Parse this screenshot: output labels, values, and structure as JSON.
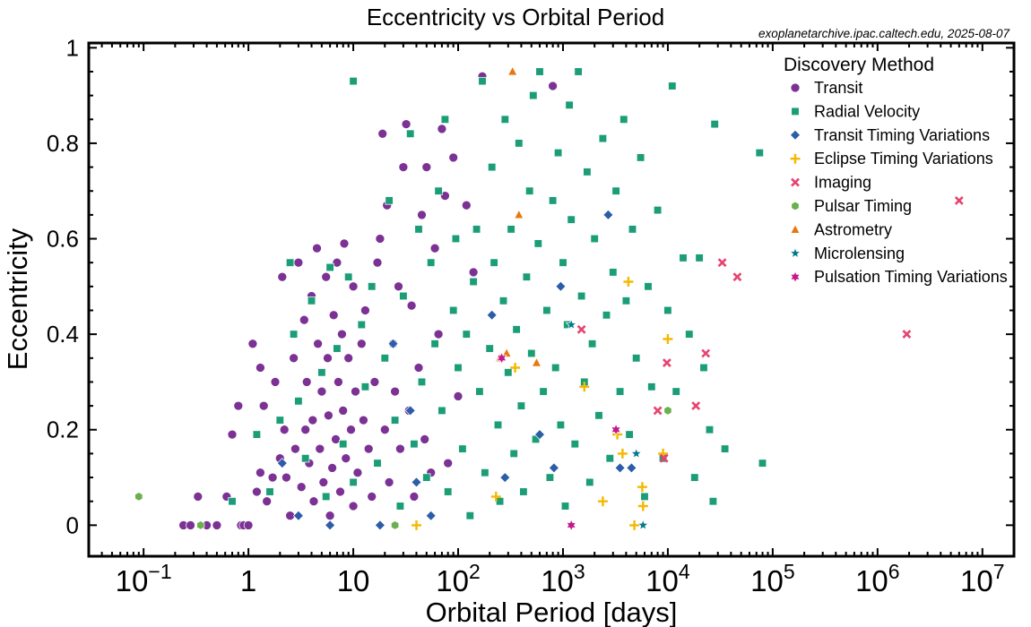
{
  "chart_data": {
    "type": "scatter",
    "title": "Eccentricity vs Orbital Period",
    "source_note": "exoplanetarchive.ipac.caltech.edu, 2025-08-07",
    "xlabel": "Orbital Period [days]",
    "ylabel": "Eccentricity",
    "x_scale": "log",
    "xlim": [
      0.03,
      20000000
    ],
    "ylim": [
      -0.065,
      1.01
    ],
    "x_ticks": [
      {
        "value": 0.1,
        "label": "10",
        "sup": "−1"
      },
      {
        "value": 1,
        "label": "1",
        "sup": ""
      },
      {
        "value": 10,
        "label": "10",
        "sup": ""
      },
      {
        "value": 100,
        "label": "10",
        "sup": "2"
      },
      {
        "value": 1000,
        "label": "10",
        "sup": "3"
      },
      {
        "value": 10000,
        "label": "10",
        "sup": "4"
      },
      {
        "value": 100000,
        "label": "10",
        "sup": "5"
      },
      {
        "value": 1000000,
        "label": "10",
        "sup": "6"
      },
      {
        "value": 10000000,
        "label": "10",
        "sup": "7"
      }
    ],
    "y_ticks": [
      {
        "value": 0,
        "label": "0"
      },
      {
        "value": 0.2,
        "label": "0.2"
      },
      {
        "value": 0.4,
        "label": "0.4"
      },
      {
        "value": 0.6,
        "label": "0.6"
      },
      {
        "value": 0.8,
        "label": "0.8"
      },
      {
        "value": 1,
        "label": "1"
      }
    ],
    "legend": {
      "title": "Discovery Method",
      "placement": "top-right"
    },
    "series": [
      {
        "name": "Transit",
        "color": "#7b3294",
        "marker": "circle",
        "points": [
          [
            0.24,
            0
          ],
          [
            0.28,
            0
          ],
          [
            0.33,
            0.06
          ],
          [
            0.4,
            0
          ],
          [
            0.5,
            0
          ],
          [
            0.62,
            0.06
          ],
          [
            0.7,
            0.19
          ],
          [
            0.8,
            0.25
          ],
          [
            0.85,
            0
          ],
          [
            0.9,
            0
          ],
          [
            1,
            0
          ],
          [
            1.1,
            0.38
          ],
          [
            1.2,
            0.07
          ],
          [
            1.3,
            0.33
          ],
          [
            1.3,
            0.11
          ],
          [
            1.4,
            0.25
          ],
          [
            1.5,
            0.05
          ],
          [
            1.7,
            0.1
          ],
          [
            1.8,
            0.3
          ],
          [
            2,
            0.14
          ],
          [
            2.1,
            0.52
          ],
          [
            2.2,
            0.2
          ],
          [
            2.3,
            0.1
          ],
          [
            2.5,
            0.02
          ],
          [
            2.7,
            0.35
          ],
          [
            2.8,
            0.16
          ],
          [
            3,
            0.55
          ],
          [
            3,
            0.26
          ],
          [
            3.2,
            0.08
          ],
          [
            3.4,
            0.43
          ],
          [
            3.5,
            0.2
          ],
          [
            3.6,
            0.3
          ],
          [
            3.8,
            0.13
          ],
          [
            4,
            0.48
          ],
          [
            4.1,
            0.22
          ],
          [
            4.2,
            0.05
          ],
          [
            4.5,
            0.58
          ],
          [
            4.6,
            0.38
          ],
          [
            4.8,
            0.16
          ],
          [
            5,
            0.28
          ],
          [
            5.2,
            0.09
          ],
          [
            5.5,
            0.52
          ],
          [
            5.7,
            0.35
          ],
          [
            5.8,
            0.23
          ],
          [
            6,
            0.02
          ],
          [
            6.3,
            0.12
          ],
          [
            6.5,
            0.44
          ],
          [
            6.8,
            0.18
          ],
          [
            7,
            0.55
          ],
          [
            7.2,
            0.3
          ],
          [
            7.5,
            0.07
          ],
          [
            7.8,
            0.4
          ],
          [
            8,
            0.24
          ],
          [
            8.2,
            0.59
          ],
          [
            8.5,
            0.14
          ],
          [
            9,
            0.35
          ],
          [
            9.5,
            0.2
          ],
          [
            10,
            0.04
          ],
          [
            10,
            0.5
          ],
          [
            10.5,
            0.28
          ],
          [
            11,
            0.11
          ],
          [
            12,
            0.38
          ],
          [
            12.5,
            0.22
          ],
          [
            13,
            0.45
          ],
          [
            14,
            0.16
          ],
          [
            15,
            0.06
          ],
          [
            16,
            0.3
          ],
          [
            17,
            0.55
          ],
          [
            18,
            0.6
          ],
          [
            19,
            0.82
          ],
          [
            20,
            0.2
          ],
          [
            21,
            0.67
          ],
          [
            22,
            0.09
          ],
          [
            24,
            0.38
          ],
          [
            25,
            0.28
          ],
          [
            27,
            0.5
          ],
          [
            28,
            0.16
          ],
          [
            30,
            0.75
          ],
          [
            32,
            0.84
          ],
          [
            34,
            0.24
          ],
          [
            36,
            0.46
          ],
          [
            38,
            0.06
          ],
          [
            42,
            0.33
          ],
          [
            45,
            0.65
          ],
          [
            48,
            0.18
          ],
          [
            50,
            0.75
          ],
          [
            55,
            0.11
          ],
          [
            60,
            0.58
          ],
          [
            65,
            0.4
          ],
          [
            70,
            0.83
          ],
          [
            75,
            0.69
          ],
          [
            80,
            0.13
          ],
          [
            90,
            0.77
          ],
          [
            100,
            0.27
          ],
          [
            120,
            0.67
          ],
          [
            140,
            0.53
          ],
          [
            170,
            0.94
          ],
          [
            800,
            0.92
          ]
        ]
      },
      {
        "name": "Radial Velocity",
        "color": "#1b9e77",
        "marker": "square",
        "points": [
          [
            0.7,
            0.05
          ],
          [
            1.2,
            0.19
          ],
          [
            1.6,
            0.07
          ],
          [
            2,
            0.22
          ],
          [
            2.5,
            0.55
          ],
          [
            2.7,
            0.4
          ],
          [
            3,
            0.26
          ],
          [
            3.5,
            0.14
          ],
          [
            4,
            0.47
          ],
          [
            5,
            0.32
          ],
          [
            5.5,
            0.06
          ],
          [
            6,
            0.54
          ],
          [
            7,
            0.37
          ],
          [
            8,
            0.17
          ],
          [
            9,
            0.52
          ],
          [
            10,
            0.93
          ],
          [
            10,
            0.09
          ],
          [
            12,
            0.42
          ],
          [
            13,
            0.29
          ],
          [
            15,
            0.5
          ],
          [
            17,
            0.13
          ],
          [
            20,
            0.35
          ],
          [
            22,
            0.68
          ],
          [
            25,
            0.22
          ],
          [
            28,
            0.04
          ],
          [
            30,
            0.48
          ],
          [
            35,
            0.82
          ],
          [
            38,
            0.17
          ],
          [
            42,
            0.62
          ],
          [
            45,
            0.3
          ],
          [
            50,
            0.1
          ],
          [
            55,
            0.55
          ],
          [
            60,
            0.38
          ],
          [
            65,
            0.7
          ],
          [
            70,
            0.24
          ],
          [
            75,
            0.85
          ],
          [
            80,
            0.07
          ],
          [
            90,
            0.45
          ],
          [
            95,
            0.6
          ],
          [
            100,
            0.33
          ],
          [
            110,
            0.16
          ],
          [
            120,
            0.4
          ],
          [
            130,
            0.02
          ],
          [
            140,
            0.51
          ],
          [
            150,
            0.62
          ],
          [
            160,
            0.28
          ],
          [
            170,
            0.93
          ],
          [
            180,
            0.11
          ],
          [
            200,
            0.37
          ],
          [
            210,
            0.75
          ],
          [
            220,
            0.55
          ],
          [
            240,
            0.21
          ],
          [
            250,
            0.05
          ],
          [
            270,
            0.47
          ],
          [
            280,
            0.85
          ],
          [
            300,
            0.32
          ],
          [
            320,
            0.62
          ],
          [
            340,
            0.15
          ],
          [
            360,
            0.41
          ],
          [
            380,
            0.8
          ],
          [
            400,
            0.25
          ],
          [
            420,
            0.07
          ],
          [
            450,
            0.52
          ],
          [
            480,
            0.7
          ],
          [
            500,
            0.36
          ],
          [
            520,
            0.9
          ],
          [
            550,
            0.18
          ],
          [
            580,
            0.59
          ],
          [
            600,
            0.95
          ],
          [
            650,
            0.28
          ],
          [
            700,
            0.45
          ],
          [
            750,
            0.1
          ],
          [
            800,
            0.68
          ],
          [
            850,
            0.33
          ],
          [
            900,
            0.78
          ],
          [
            950,
            0.21
          ],
          [
            1000,
            0.55
          ],
          [
            1050,
            0.04
          ],
          [
            1100,
            0.42
          ],
          [
            1150,
            0.88
          ],
          [
            1200,
            0.64
          ],
          [
            1300,
            0.17
          ],
          [
            1400,
            0.95
          ],
          [
            1500,
            0.48
          ],
          [
            1600,
            0.3
          ],
          [
            1700,
            0.74
          ],
          [
            1800,
            0.09
          ],
          [
            1900,
            0.38
          ],
          [
            2000,
            0.6
          ],
          [
            2200,
            0.23
          ],
          [
            2400,
            0.81
          ],
          [
            2600,
            0.44
          ],
          [
            2800,
            0.14
          ],
          [
            3000,
            0.53
          ],
          [
            3200,
            0.7
          ],
          [
            3500,
            0.28
          ],
          [
            3800,
            0.85
          ],
          [
            4000,
            0.47
          ],
          [
            4300,
            0.19
          ],
          [
            4600,
            0.62
          ],
          [
            5000,
            0.35
          ],
          [
            5500,
            0.77
          ],
          [
            6000,
            0.06
          ],
          [
            6500,
            0.5
          ],
          [
            7000,
            0.29
          ],
          [
            8000,
            0.66
          ],
          [
            9000,
            0.14
          ],
          [
            10000,
            0.45
          ],
          [
            11000,
            0.92
          ],
          [
            12000,
            0.28
          ],
          [
            14000,
            0.56
          ],
          [
            16000,
            0.4
          ],
          [
            18000,
            0.1
          ],
          [
            20000,
            0.56
          ],
          [
            22000,
            0.33
          ],
          [
            25000,
            0.2
          ],
          [
            27000,
            0.05
          ],
          [
            28000,
            0.84
          ],
          [
            35000,
            0.16
          ],
          [
            75000,
            0.78
          ],
          [
            80000,
            0.13
          ]
        ]
      },
      {
        "name": "Transit Timing Variations",
        "color": "#2c5da8",
        "marker": "diamond",
        "points": [
          [
            2.1,
            0.13
          ],
          [
            3,
            0.02
          ],
          [
            6,
            0
          ],
          [
            18,
            0
          ],
          [
            24,
            0.38
          ],
          [
            35,
            0.24
          ],
          [
            40,
            0.09
          ],
          [
            55,
            0.02
          ],
          [
            210,
            0.44
          ],
          [
            280,
            0.1
          ],
          [
            600,
            0.19
          ],
          [
            820,
            0.12
          ],
          [
            950,
            0.5
          ],
          [
            2700,
            0.65
          ],
          [
            3500,
            0.12
          ],
          [
            4500,
            0.12
          ]
        ]
      },
      {
        "name": "Eclipse Timing Variations",
        "color": "#f5b800",
        "marker": "plus",
        "points": [
          [
            40,
            0
          ],
          [
            230,
            0.06
          ],
          [
            350,
            0.33
          ],
          [
            1600,
            0.29
          ],
          [
            2400,
            0.05
          ],
          [
            3300,
            0.19
          ],
          [
            3700,
            0.15
          ],
          [
            4200,
            0.51
          ],
          [
            4800,
            0
          ],
          [
            5700,
            0.08
          ],
          [
            5800,
            0.04
          ],
          [
            9000,
            0.15
          ],
          [
            10000,
            0.39
          ]
        ]
      },
      {
        "name": "Imaging",
        "color": "#e8436f",
        "marker": "x",
        "points": [
          [
            1500,
            0.41
          ],
          [
            8000,
            0.24
          ],
          [
            9200,
            0.14
          ],
          [
            9800,
            0.34
          ],
          [
            18500,
            0.25
          ],
          [
            23000,
            0.36
          ],
          [
            33000,
            0.55
          ],
          [
            46000,
            0.52
          ],
          [
            1900000,
            0.4
          ],
          [
            6000000,
            0.68
          ]
        ]
      },
      {
        "name": "Pulsar Timing",
        "color": "#6ab04c",
        "marker": "hexagon",
        "points": [
          [
            0.09,
            0.06
          ],
          [
            0.35,
            0
          ],
          [
            25,
            0
          ],
          [
            10000,
            0.24
          ]
        ]
      },
      {
        "name": "Astrometry",
        "color": "#e8780e",
        "marker": "triangle",
        "points": [
          [
            250,
            0.35
          ],
          [
            290,
            0.36
          ],
          [
            330,
            0.95
          ],
          [
            380,
            0.65
          ],
          [
            560,
            0.34
          ]
        ]
      },
      {
        "name": "Microlensing",
        "color": "#00798c",
        "marker": "star",
        "points": [
          [
            1200,
            0.42
          ],
          [
            5000,
            0.15
          ],
          [
            5800,
            0
          ]
        ]
      },
      {
        "name": "Pulsation Timing Variations",
        "color": "#c2198c",
        "marker": "star6",
        "points": [
          [
            260,
            0.35
          ],
          [
            1200,
            0
          ],
          [
            3200,
            0.2
          ]
        ]
      }
    ]
  }
}
